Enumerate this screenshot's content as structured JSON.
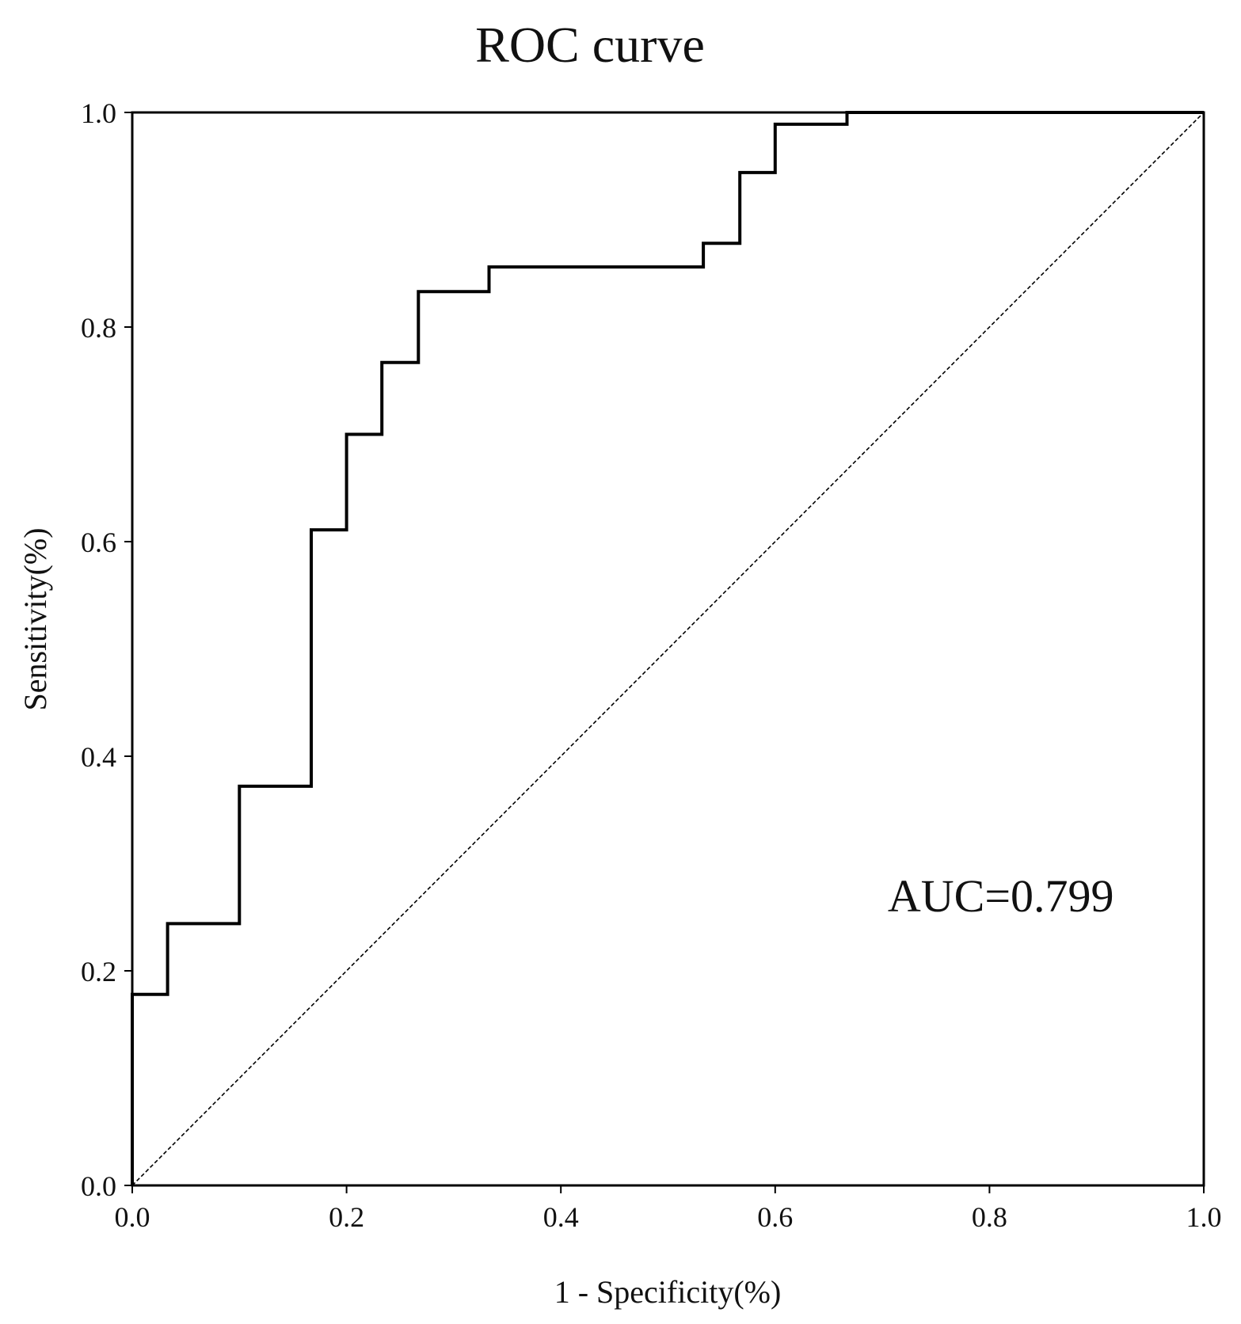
{
  "chart_data": {
    "type": "line",
    "title": "ROC curve",
    "xlabel": "1 - Specificity(%)",
    "ylabel": "Sensitivity(%)",
    "xlim": [
      0.0,
      1.0
    ],
    "ylim": [
      0.0,
      1.0
    ],
    "x_ticks": [
      "0.0",
      "0.2",
      "0.4",
      "0.6",
      "0.8",
      "1.0"
    ],
    "y_ticks": [
      "0.0",
      "0.2",
      "0.4",
      "0.6",
      "0.8",
      "1.0"
    ],
    "grid": false,
    "legend": "none",
    "series": [
      {
        "style": "solid-step",
        "color": "#000000",
        "x": [
          0.0,
          0.0,
          0.033,
          0.033,
          0.1,
          0.1,
          0.167,
          0.167,
          0.2,
          0.2,
          0.233,
          0.233,
          0.267,
          0.267,
          0.333,
          0.333,
          0.533,
          0.533,
          0.567,
          0.567,
          0.6,
          0.6,
          0.667,
          0.667,
          1.0
        ],
        "y": [
          0.0,
          0.178,
          0.178,
          0.244,
          0.244,
          0.372,
          0.372,
          0.611,
          0.611,
          0.7,
          0.7,
          0.767,
          0.767,
          0.833,
          0.833,
          0.856,
          0.856,
          0.878,
          0.878,
          0.944,
          0.944,
          0.989,
          0.989,
          1.0,
          1.0
        ]
      },
      {
        "style": "dashed-reference",
        "color": "#000000",
        "x": [
          0.0,
          1.0
        ],
        "y": [
          0.0,
          1.0
        ]
      }
    ],
    "annotations": [
      {
        "text": "AUC=0.799",
        "x": 0.705,
        "y": 0.27
      }
    ]
  }
}
